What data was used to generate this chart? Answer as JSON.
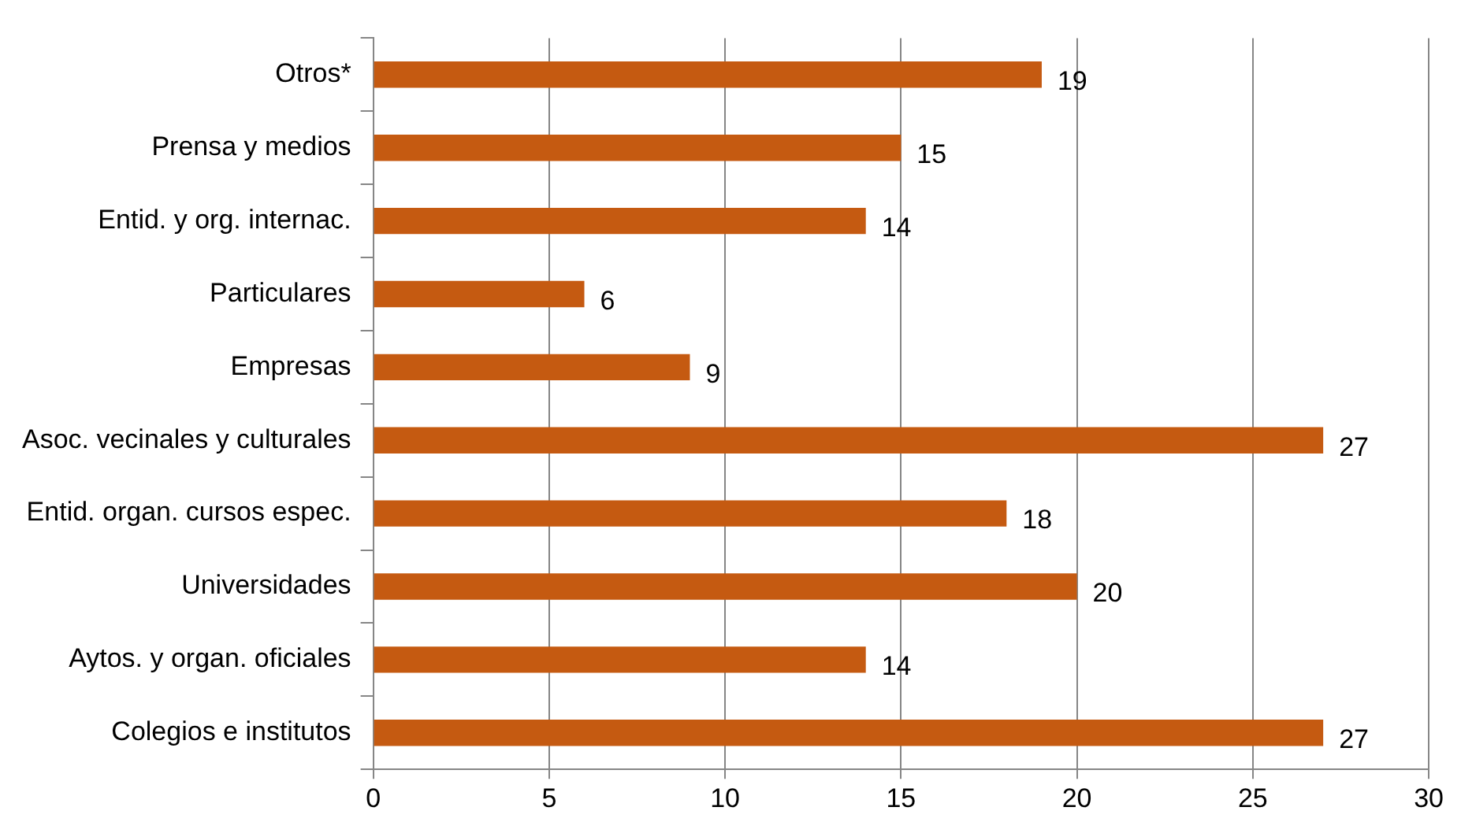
{
  "chart_data": {
    "type": "bar",
    "orientation": "horizontal",
    "categories": [
      "Otros*",
      "Prensa y medios",
      "Entid. y org. internac.",
      "Particulares",
      "Empresas",
      "Asoc. vecinales y culturales",
      "Entid. organ. cursos espec.",
      "Universidades",
      "Aytos. y organ. oficiales",
      "Colegios e institutos"
    ],
    "values": [
      19,
      15,
      14,
      6,
      9,
      27,
      18,
      20,
      14,
      27
    ],
    "color": "#c55a11",
    "xlim": [
      0,
      30
    ],
    "xticks": [
      0,
      5,
      10,
      15,
      20,
      25,
      30
    ],
    "grid": "x",
    "data_labels": true,
    "legend": false
  }
}
